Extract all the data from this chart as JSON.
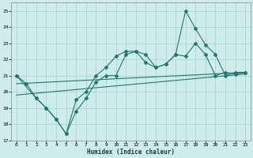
{
  "xlabel": "Humidex (Indice chaleur)",
  "background_color": "#ceecea",
  "grid_color": "#aed8d4",
  "line_color": "#1e7a6e",
  "xlim": [
    -0.5,
    23.5
  ],
  "ylim": [
    17,
    25.5
  ],
  "xticks": [
    0,
    1,
    2,
    3,
    4,
    5,
    6,
    7,
    8,
    9,
    10,
    11,
    12,
    13,
    14,
    15,
    16,
    17,
    18,
    19,
    20,
    21,
    22,
    23
  ],
  "yticks": [
    17,
    18,
    19,
    20,
    21,
    22,
    23,
    24,
    25
  ],
  "line1_x": [
    0,
    1,
    2,
    3,
    4,
    5,
    6,
    7,
    8,
    9,
    10,
    11,
    12,
    13,
    14,
    15,
    16,
    17,
    18,
    19,
    20,
    21,
    22,
    23
  ],
  "line1_y": [
    21.0,
    20.5,
    19.6,
    19.0,
    18.3,
    17.4,
    18.8,
    19.6,
    20.6,
    21.0,
    21.0,
    22.3,
    22.5,
    22.3,
    21.5,
    21.7,
    22.3,
    22.2,
    23.0,
    22.3,
    21.0,
    21.2,
    21.1,
    21.2
  ],
  "line2_x": [
    0,
    2,
    3,
    4,
    5,
    6,
    7,
    8,
    9,
    10,
    11,
    12,
    13,
    14,
    15,
    16,
    17,
    18,
    19,
    20,
    21,
    22,
    23
  ],
  "line2_y": [
    21.0,
    19.6,
    19.0,
    18.3,
    17.4,
    19.5,
    20.0,
    21.0,
    21.5,
    22.2,
    22.5,
    22.5,
    21.8,
    21.5,
    21.7,
    22.3,
    25.0,
    23.9,
    22.9,
    22.3,
    21.0,
    21.2,
    21.2
  ],
  "trend1_x": [
    0,
    23
  ],
  "trend1_y": [
    19.8,
    21.1
  ],
  "trend2_x": [
    0,
    23
  ],
  "trend2_y": [
    20.5,
    21.2
  ]
}
